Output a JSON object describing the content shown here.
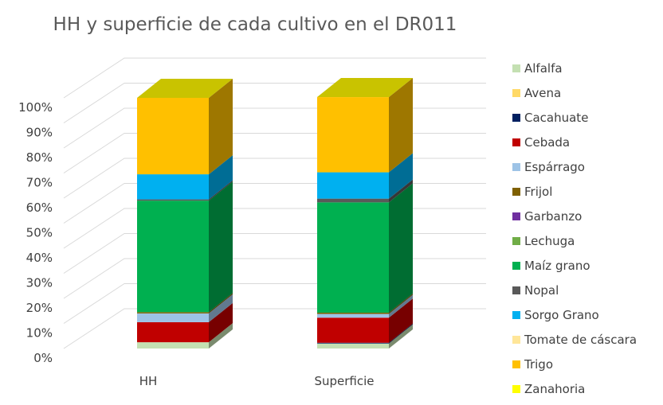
{
  "chart_data": {
    "type": "bar",
    "stacked": "percent",
    "three_d": true,
    "title": "HH y superficie de cada cultivo en el DR011",
    "categories": [
      "HH",
      "Superficie"
    ],
    "yticks": [
      "0%",
      "10%",
      "20%",
      "30%",
      "40%",
      "50%",
      "60%",
      "70%",
      "80%",
      "90%",
      "100%"
    ],
    "ylim": [
      0,
      100
    ],
    "grid": true,
    "legend_position": "right",
    "series": [
      {
        "name": "Alfalfa",
        "color": "#c4e0b2",
        "values": [
          2.5,
          2
        ]
      },
      {
        "name": "Avena",
        "color": "#ffd966",
        "values": [
          0,
          0
        ]
      },
      {
        "name": "Cacahuate",
        "color": "#002060",
        "values": [
          0,
          0.3
        ]
      },
      {
        "name": "Cebada",
        "color": "#c00000",
        "values": [
          8,
          10
        ]
      },
      {
        "name": "Espárrago",
        "color": "#9dc3e6",
        "values": [
          3.5,
          1.5
        ]
      },
      {
        "name": "Frijol",
        "color": "#7f6000",
        "values": [
          0.5,
          0.5
        ]
      },
      {
        "name": "Garbanzo",
        "color": "#7030a0",
        "values": [
          0,
          0
        ]
      },
      {
        "name": "Lechuga",
        "color": "#70ad47",
        "values": [
          0,
          0
        ]
      },
      {
        "name": "Maíz grano",
        "color": "#00b050",
        "values": [
          44.5,
          44
        ]
      },
      {
        "name": "Nopal",
        "color": "#595959",
        "values": [
          0.5,
          1.5
        ]
      },
      {
        "name": "Sorgo Grano",
        "color": "#00b0f0",
        "values": [
          10,
          10.5
        ]
      },
      {
        "name": "Tomate de cáscara",
        "color": "#ffe699",
        "values": [
          0,
          0
        ]
      },
      {
        "name": "Trigo",
        "color": "#ffc000",
        "values": [
          30.5,
          30
        ]
      },
      {
        "name": "Zanahoria",
        "color": "#ffff00",
        "values": [
          0,
          0
        ]
      }
    ]
  }
}
